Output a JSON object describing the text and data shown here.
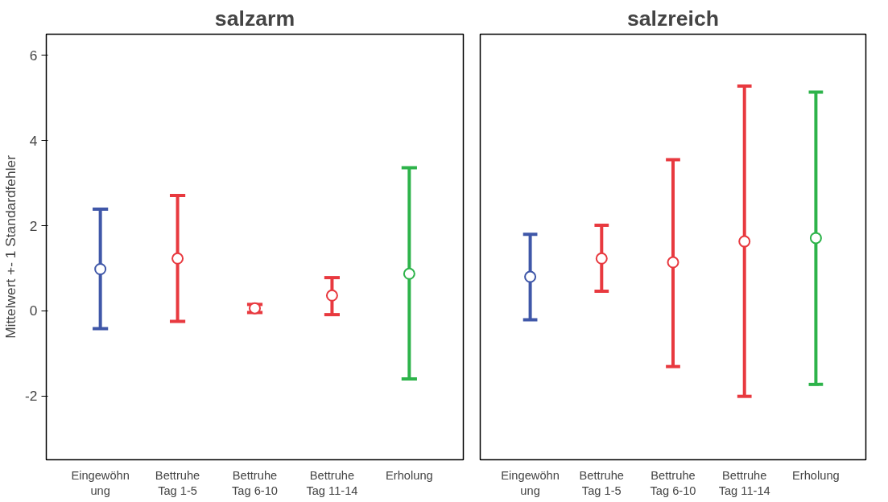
{
  "chart_data": [
    {
      "type": "scatter",
      "title": "salzarm",
      "ylabel": "Mittelwert +- 1 Standardfehler",
      "categories": [
        "Eingewöhn\nung",
        "Bettruhe\nTag 1-5",
        "Bettruhe\nTag 6-10",
        "Bettruhe\nTag 11-14",
        "Erholung"
      ],
      "values": [
        0.98,
        1.23,
        0.06,
        0.36,
        0.87
      ],
      "errors": [
        [
          -0.42,
          2.39
        ],
        [
          -0.25,
          2.71
        ],
        [
          -0.04,
          0.15
        ],
        [
          -0.09,
          0.78
        ],
        [
          -1.6,
          3.36
        ]
      ],
      "colors": [
        "#3f57a8",
        "#e8393f",
        "#e8393f",
        "#e8393f",
        "#2db34a"
      ],
      "marker": "circle",
      "ylim": [
        -3.5,
        6.5
      ],
      "yticks": [
        -2,
        0,
        2,
        4,
        6
      ],
      "grid": false
    },
    {
      "type": "scatter",
      "title": "salzreich",
      "categories": [
        "Eingewöhn\nung",
        "Bettruhe\nTag 1-5",
        "Bettruhe\nTag 6-10",
        "Bettruhe\nTag 11-14",
        "Erholung"
      ],
      "values": [
        0.8,
        1.23,
        1.14,
        1.63,
        1.71
      ],
      "errors": [
        [
          -0.21,
          1.8
        ],
        [
          0.46,
          2.01
        ],
        [
          -1.31,
          3.55
        ],
        [
          -2.01,
          5.28
        ],
        [
          -1.73,
          5.14
        ]
      ],
      "colors": [
        "#3f57a8",
        "#e8393f",
        "#e8393f",
        "#e8393f",
        "#2db34a"
      ],
      "marker": "circle",
      "ylim": [
        -3.5,
        6.5
      ],
      "yticks": [
        -2,
        0,
        2,
        4,
        6
      ],
      "tick_labels": "x",
      "grid": false
    }
  ]
}
